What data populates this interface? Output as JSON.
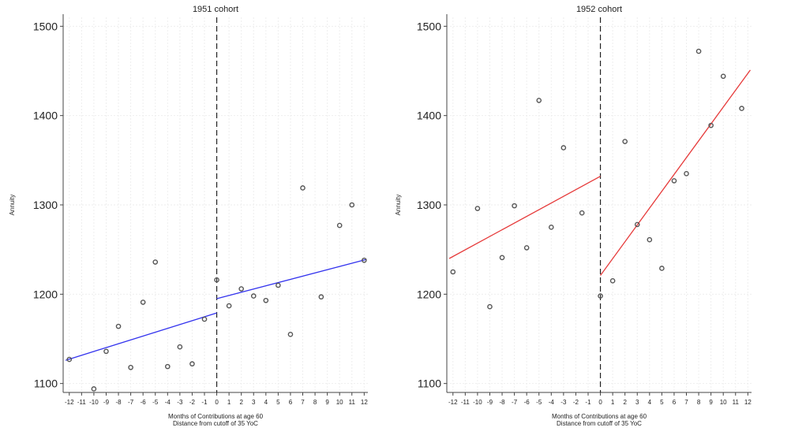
{
  "chart_data": [
    {
      "type": "scatter",
      "title": "1951 cohort",
      "xlabel": "Months of Contributions at age 60",
      "xlabel2": "Distance from cutoff of 35 YoC",
      "ylabel": "Annuity",
      "xlim": [
        -12.5,
        12.3
      ],
      "ylim": [
        1090,
        1510
      ],
      "xticks": [
        -12,
        -11,
        -10,
        -9,
        -8,
        -7,
        -6,
        -5,
        -4,
        -3,
        -2,
        -1,
        0,
        1,
        2,
        3,
        4,
        5,
        6,
        7,
        8,
        9,
        10,
        11,
        12
      ],
      "yticks": [
        1100,
        1200,
        1300,
        1400,
        1500
      ],
      "cutoff": 0,
      "grid": true,
      "line_color": "#3333ee",
      "marker_color": "#555555",
      "points": {
        "x": [
          -12,
          -10,
          -9,
          -8,
          -7,
          -6,
          -5,
          -4,
          -3,
          -2,
          -1,
          0,
          1,
          2,
          3,
          4,
          5,
          6,
          7,
          8.5,
          10,
          11,
          12
        ],
        "y": [
          1127,
          1094,
          1136,
          1164,
          1118,
          1191,
          1236,
          1119,
          1141,
          1122,
          1172,
          1216,
          1187,
          1206,
          1198,
          1193,
          1210,
          1155,
          1319,
          1197,
          1277,
          1300,
          1238
        ]
      },
      "fit_left": {
        "x": [
          -12.3,
          0
        ],
        "y": [
          1126,
          1179
        ]
      },
      "fit_right": {
        "x": [
          0,
          12.2
        ],
        "y": [
          1195,
          1239
        ]
      }
    },
    {
      "type": "scatter",
      "title": "1952 cohort",
      "xlabel": "Months of Contributions at age 60",
      "xlabel2": "Distance from cutoff of 35 YoC",
      "ylabel": "Annuity",
      "xlim": [
        -12.5,
        12.3
      ],
      "ylim": [
        1090,
        1510
      ],
      "xticks": [
        -12,
        -11,
        -10,
        -9,
        -8,
        -7,
        -6,
        -5,
        -4,
        -3,
        -2,
        -1,
        0,
        1,
        2,
        3,
        4,
        5,
        6,
        7,
        8,
        9,
        10,
        11,
        12
      ],
      "yticks": [
        1100,
        1200,
        1300,
        1400,
        1500
      ],
      "cutoff": 0,
      "grid": true,
      "line_color": "#e63a3a",
      "marker_color": "#555555",
      "points": {
        "x": [
          -12,
          -10,
          -9,
          -8,
          -7,
          -6,
          -5,
          -4,
          -3,
          -1.5,
          0,
          1,
          2,
          3,
          4,
          5,
          6,
          7,
          8,
          9,
          10,
          11.5
        ],
        "y": [
          1225,
          1296,
          1186,
          1241,
          1299,
          1252,
          1417,
          1275,
          1364,
          1291,
          1198,
          1215,
          1371,
          1278,
          1261,
          1229,
          1327,
          1335,
          1472,
          1389,
          1444,
          1408
        ]
      },
      "fit_left": {
        "x": [
          -12.3,
          0
        ],
        "y": [
          1240,
          1332
        ]
      },
      "fit_right": {
        "x": [
          0,
          12.2
        ],
        "y": [
          1221,
          1451
        ]
      }
    }
  ]
}
